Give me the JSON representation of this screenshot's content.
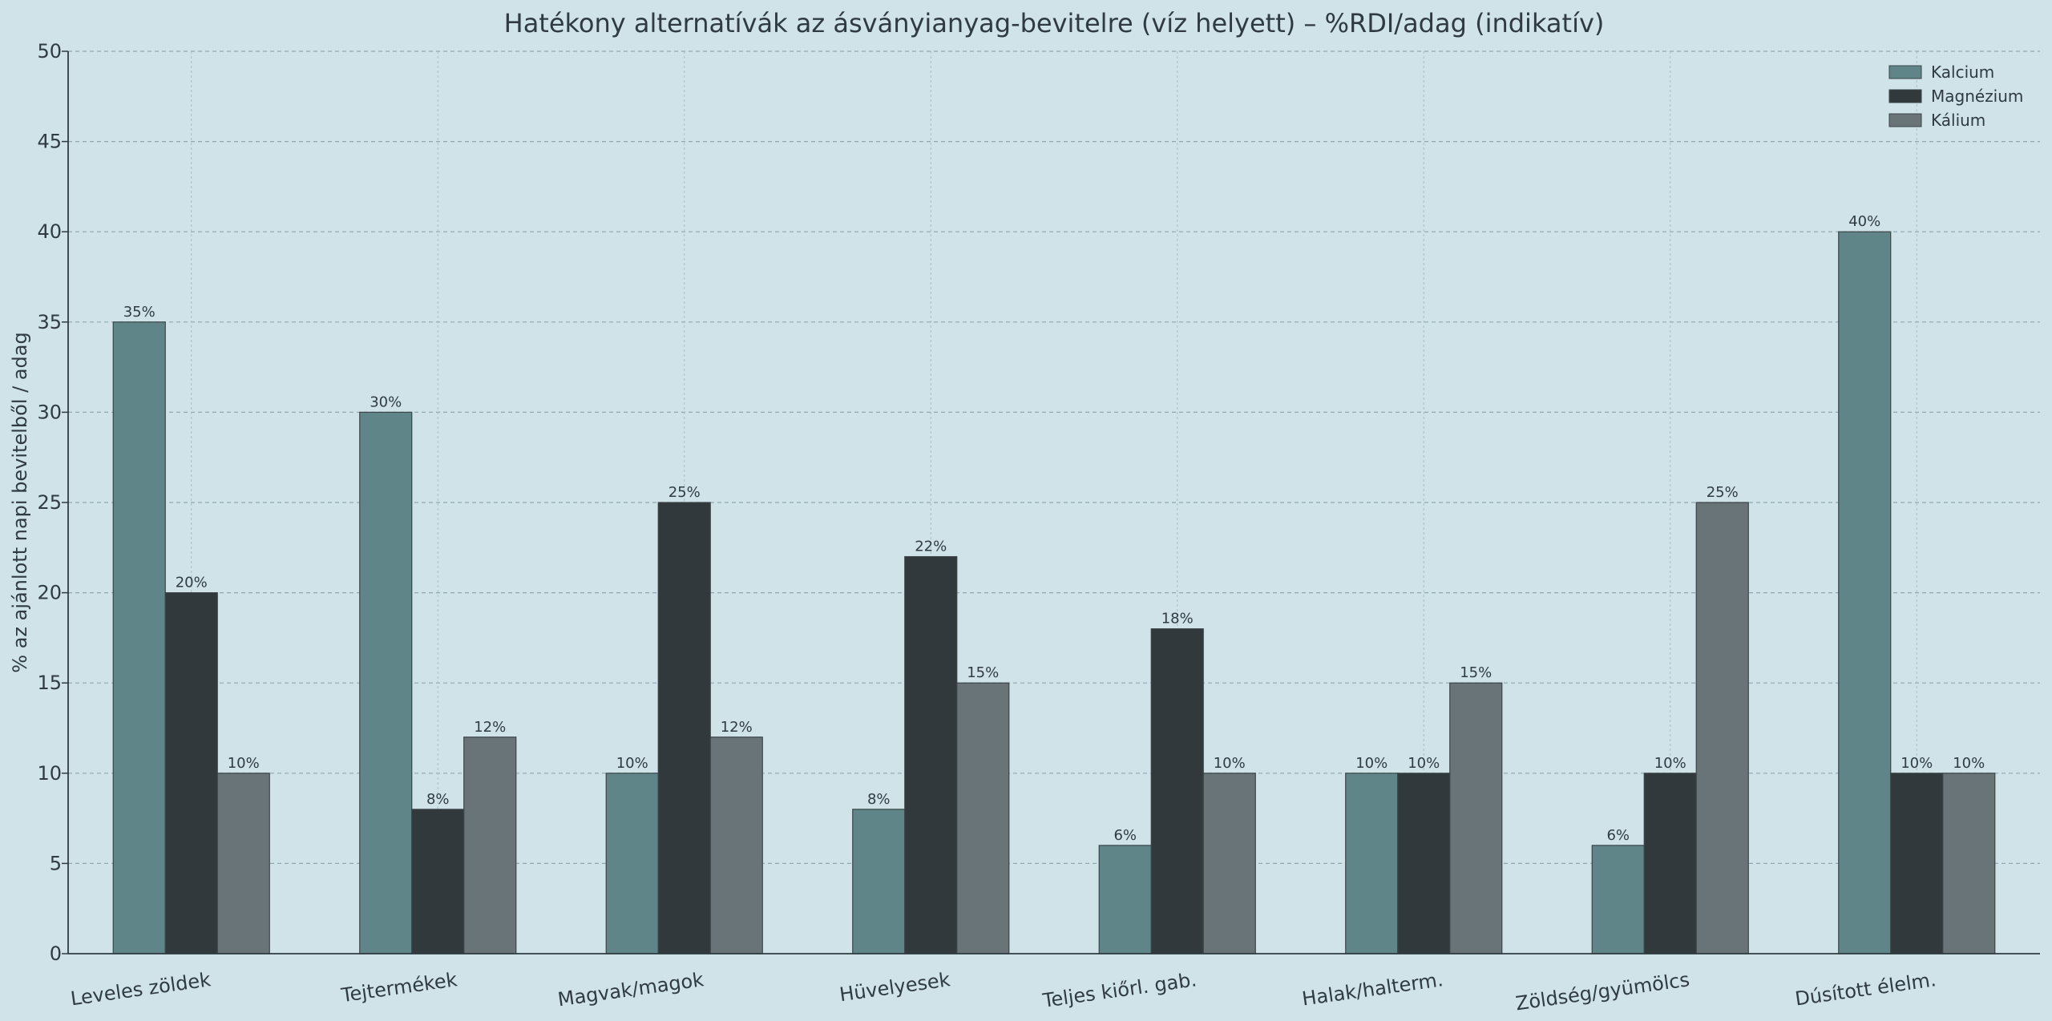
{
  "chart_data": {
    "type": "bar",
    "title": "Hatékony alternatívák az ásványianyag-bevitelre (víz helyett) – %RDI/adag (indikatív)",
    "xlabel": "",
    "ylabel": "% az ajánlott napi bevitelből / adag",
    "ylim": [
      0,
      50
    ],
    "yticks": [
      0,
      5,
      10,
      15,
      20,
      25,
      30,
      35,
      40,
      45,
      50
    ],
    "grid": true,
    "legend_position": "top-right",
    "categories": [
      "Leveles zöldek",
      "Tejtermékek",
      "Magvak/magok",
      "Hüvelyesek",
      "Teljes kiőrl. gab.",
      "Halak/halterm.",
      "Zöldség/gyümölcs",
      "Dúsított élelm."
    ],
    "series": [
      {
        "name": "Kalcium",
        "color": "#5f8589",
        "values": [
          35,
          30,
          10,
          8,
          6,
          10,
          6,
          40
        ]
      },
      {
        "name": "Magnézium",
        "color": "#31393c",
        "values": [
          20,
          8,
          25,
          22,
          18,
          10,
          10,
          10
        ]
      },
      {
        "name": "Kálium",
        "color": "#687478",
        "values": [
          10,
          12,
          12,
          15,
          10,
          15,
          25,
          10
        ]
      }
    ],
    "value_labels": [
      [
        "35%",
        "30%",
        "10%",
        "8%",
        "6%",
        "10%",
        "6%",
        "40%"
      ],
      [
        "20%",
        "8%",
        "25%",
        "22%",
        "18%",
        "10%",
        "10%",
        "10%"
      ],
      [
        "10%",
        "12%",
        "12%",
        "15%",
        "10%",
        "15%",
        "25%",
        "10%"
      ]
    ]
  }
}
